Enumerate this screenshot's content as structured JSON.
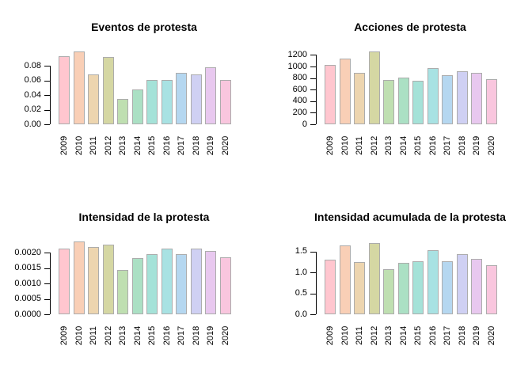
{
  "figure": {
    "background_color": "#FFFFFF",
    "bar_border_color": "#ACACAC",
    "axis_color": "#000000",
    "palette": [
      "#FFC6CF",
      "#F9CFB6",
      "#EDD5AF",
      "#D5D7A3",
      "#BFDFB1",
      "#ABE0C4",
      "#A5E2D8",
      "#A8E2E3",
      "#B5D7F0",
      "#CFD0F3",
      "#E8C8EF",
      "#F9C6DE"
    ]
  },
  "chart_data": [
    {
      "type": "bar",
      "title": "Eventos de protesta",
      "xlabel": "",
      "ylabel": "",
      "grid": false,
      "categories": [
        "2009",
        "2010",
        "2011",
        "2012",
        "2013",
        "2014",
        "2015",
        "2016",
        "2017",
        "2018",
        "2019",
        "2020"
      ],
      "values": [
        0.093,
        0.1,
        0.068,
        0.092,
        0.035,
        0.048,
        0.061,
        0.061,
        0.07,
        0.068,
        0.078,
        0.061
      ],
      "ytick_values": [
        0,
        0.02,
        0.04,
        0.06,
        0.08
      ],
      "ytick_labels": [
        "0.00",
        "0.02",
        "0.04",
        "0.06",
        "0.08"
      ],
      "ylim": [
        0,
        0.105
      ]
    },
    {
      "type": "bar",
      "title": "Acciones de protesta",
      "xlabel": "",
      "ylabel": "",
      "grid": false,
      "categories": [
        "2009",
        "2010",
        "2011",
        "2012",
        "2013",
        "2014",
        "2015",
        "2016",
        "2017",
        "2018",
        "2019",
        "2020"
      ],
      "values": [
        1035,
        1145,
        885,
        1255,
        765,
        805,
        760,
        980,
        855,
        915,
        885,
        780
      ],
      "ytick_values": [
        0,
        200,
        400,
        600,
        800,
        1000,
        1200
      ],
      "ytick_labels": [
        "0",
        "200",
        "400",
        "600",
        "800",
        "1000",
        "1200"
      ],
      "ylim": [
        0,
        1330
      ]
    },
    {
      "type": "bar",
      "title": "Intensidad de la protesta",
      "xlabel": "",
      "ylabel": "",
      "grid": false,
      "categories": [
        "2009",
        "2010",
        "2011",
        "2012",
        "2013",
        "2014",
        "2015",
        "2016",
        "2017",
        "2018",
        "2019",
        "2020"
      ],
      "values": [
        0.00215,
        0.00238,
        0.00218,
        0.00227,
        0.00144,
        0.00184,
        0.00195,
        0.00215,
        0.00195,
        0.00215,
        0.00205,
        0.00185
      ],
      "ytick_values": [
        0,
        0.0005,
        0.001,
        0.0015,
        0.002
      ],
      "ytick_labels": [
        "0.0000",
        "0.0005",
        "0.0010",
        "0.0015",
        "0.0020"
      ],
      "ylim": [
        0,
        0.0025
      ]
    },
    {
      "type": "bar",
      "title": "Intensidad acumulada de la protesta",
      "xlabel": "",
      "ylabel": "",
      "grid": false,
      "categories": [
        "2009",
        "2010",
        "2011",
        "2012",
        "2013",
        "2014",
        "2015",
        "2016",
        "2017",
        "2018",
        "2019",
        "2020"
      ],
      "values": [
        1.3,
        1.65,
        1.26,
        1.71,
        1.08,
        1.23,
        1.28,
        1.53,
        1.27,
        1.44,
        1.32,
        1.17
      ],
      "ytick_values": [
        0,
        0.5,
        1.0,
        1.5
      ],
      "ytick_labels": [
        "0.0",
        "0.5",
        "1.0",
        "1.5"
      ],
      "ylim": [
        0,
        1.84
      ]
    }
  ]
}
